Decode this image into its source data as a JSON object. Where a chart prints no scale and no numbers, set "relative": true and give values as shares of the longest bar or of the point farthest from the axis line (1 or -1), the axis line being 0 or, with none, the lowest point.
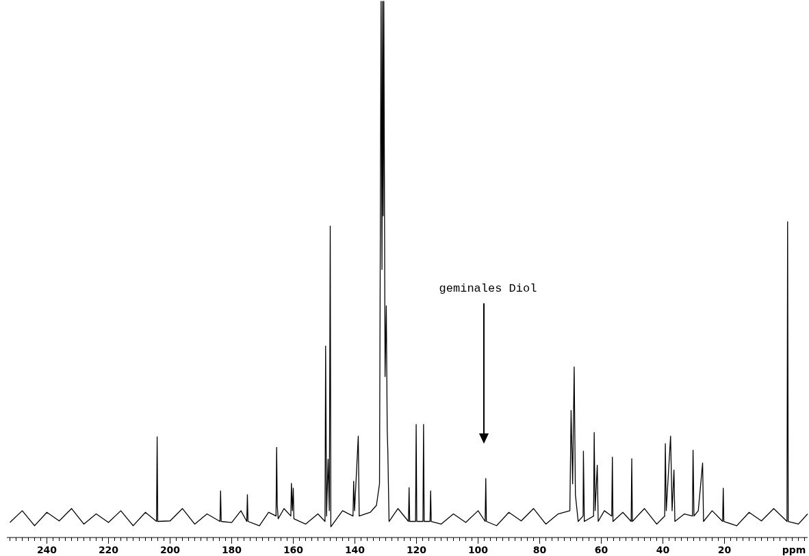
{
  "chart_data": {
    "type": "line",
    "relative": true,
    "xlabel": "ppm",
    "xlim": [
      253,
      -7
    ],
    "xticks": [
      240,
      220,
      200,
      180,
      160,
      140,
      120,
      100,
      80,
      60,
      40,
      20,
      {
        "value": 252,
        "label": null
      },
      {
        "value": 250,
        "label": null
      },
      {
        "value": 248,
        "label": null
      },
      {
        "value": 246,
        "label": null
      },
      {
        "value": 244,
        "label": null
      },
      {
        "value": 242,
        "label": null
      },
      {
        "value": 238,
        "label": null
      },
      {
        "value": 236,
        "label": null
      },
      {
        "value": 234,
        "label": null
      },
      {
        "value": 232,
        "label": null
      },
      {
        "value": 230,
        "label": null
      },
      {
        "value": 228,
        "label": null
      },
      {
        "value": 226,
        "label": null
      },
      {
        "value": 224,
        "label": null
      },
      {
        "value": 222,
        "label": null
      },
      {
        "value": 218,
        "label": null
      },
      {
        "value": 216,
        "label": null
      },
      {
        "value": 214,
        "label": null
      },
      {
        "value": 212,
        "label": null
      },
      {
        "value": 210,
        "label": null
      },
      {
        "value": 208,
        "label": null
      },
      {
        "value": 206,
        "label": null
      },
      {
        "value": 204,
        "label": null
      },
      {
        "value": 202,
        "label": null
      },
      {
        "value": 198,
        "label": null
      },
      {
        "value": 196,
        "label": null
      },
      {
        "value": 194,
        "label": null
      },
      {
        "value": 192,
        "label": null
      },
      {
        "value": 190,
        "label": null
      },
      {
        "value": 188,
        "label": null
      },
      {
        "value": 186,
        "label": null
      },
      {
        "value": 184,
        "label": null
      },
      {
        "value": 182,
        "label": null
      },
      {
        "value": 178,
        "label": null
      },
      {
        "value": 176,
        "label": null
      },
      {
        "value": 174,
        "label": null
      },
      {
        "value": 172,
        "label": null
      },
      {
        "value": 170,
        "label": null
      },
      {
        "value": 168,
        "label": null
      },
      {
        "value": 166,
        "label": null
      },
      {
        "value": 164,
        "label": null
      },
      {
        "value": 162,
        "label": null
      },
      {
        "value": 158,
        "label": null
      },
      {
        "value": 156,
        "label": null
      },
      {
        "value": 154,
        "label": null
      },
      {
        "value": 152,
        "label": null
      },
      {
        "value": 150,
        "label": null
      },
      {
        "value": 148,
        "label": null
      },
      {
        "value": 146,
        "label": null
      },
      {
        "value": 144,
        "label": null
      },
      {
        "value": 142,
        "label": null
      },
      {
        "value": 138,
        "label": null
      },
      {
        "value": 136,
        "label": null
      },
      {
        "value": 134,
        "label": null
      },
      {
        "value": 132,
        "label": null
      },
      {
        "value": 130,
        "label": null
      },
      {
        "value": 128,
        "label": null
      },
      {
        "value": 126,
        "label": null
      },
      {
        "value": 124,
        "label": null
      },
      {
        "value": 122,
        "label": null
      },
      {
        "value": 118,
        "label": null
      },
      {
        "value": 116,
        "label": null
      },
      {
        "value": 114,
        "label": null
      },
      {
        "value": 112,
        "label": null
      },
      {
        "value": 110,
        "label": null
      },
      {
        "value": 108,
        "label": null
      },
      {
        "value": 106,
        "label": null
      },
      {
        "value": 104,
        "label": null
      },
      {
        "value": 102,
        "label": null
      },
      {
        "value": 98,
        "label": null
      },
      {
        "value": 96,
        "label": null
      },
      {
        "value": 94,
        "label": null
      },
      {
        "value": 92,
        "label": null
      },
      {
        "value": 90,
        "label": null
      },
      {
        "value": 88,
        "label": null
      },
      {
        "value": 86,
        "label": null
      },
      {
        "value": 84,
        "label": null
      },
      {
        "value": 82,
        "label": null
      },
      {
        "value": 78,
        "label": null
      },
      {
        "value": 76,
        "label": null
      },
      {
        "value": 74,
        "label": null
      },
      {
        "value": 72,
        "label": null
      },
      {
        "value": 70,
        "label": null
      },
      {
        "value": 68,
        "label": null
      },
      {
        "value": 66,
        "label": null
      },
      {
        "value": 64,
        "label": null
      },
      {
        "value": 62,
        "label": null
      },
      {
        "value": 58,
        "label": null
      },
      {
        "value": 56,
        "label": null
      },
      {
        "value": 54,
        "label": null
      },
      {
        "value": 52,
        "label": null
      },
      {
        "value": 50,
        "label": null
      },
      {
        "value": 48,
        "label": null
      },
      {
        "value": 46,
        "label": null
      },
      {
        "value": 44,
        "label": null
      },
      {
        "value": 42,
        "label": null
      },
      {
        "value": 38,
        "label": null
      },
      {
        "value": 36,
        "label": null
      },
      {
        "value": 34,
        "label": null
      },
      {
        "value": 32,
        "label": null
      },
      {
        "value": 30,
        "label": null
      },
      {
        "value": 28,
        "label": null
      },
      {
        "value": 26,
        "label": null
      },
      {
        "value": 24,
        "label": null
      },
      {
        "value": 22,
        "label": null
      },
      {
        "value": 18,
        "label": null
      },
      {
        "value": 16,
        "label": null
      },
      {
        "value": 14,
        "label": null
      },
      {
        "value": 12,
        "label": null
      },
      {
        "value": 10,
        "label": null
      },
      {
        "value": 8,
        "label": null
      },
      {
        "value": 6,
        "label": null
      },
      {
        "value": 4,
        "label": null
      },
      {
        "value": 2,
        "label": null
      },
      {
        "value": 0,
        "label": null
      },
      {
        "value": -2,
        "label": null
      },
      {
        "value": -4,
        "label": null
      },
      {
        "value": -6,
        "label": null
      }
    ],
    "annotations": [
      "geminales Diol"
    ],
    "series": [
      {
        "color": "#000000",
        "x": [
          252,
          248,
          244,
          240,
          236,
          232,
          228,
          224,
          220,
          216,
          212,
          208,
          204.4,
          204.2,
          204.0,
          200,
          196,
          192,
          188,
          183.8,
          183.6,
          183.4,
          180,
          177,
          175.1,
          174.9,
          174.7,
          171,
          168,
          165.6,
          165.4,
          165.2,
          164.9,
          163,
          160.8,
          160.6,
          160.3,
          160.0,
          159.8,
          156,
          152,
          149.7,
          149.5,
          149.2,
          148.7,
          148.3,
          148.0,
          147.8,
          144,
          140.6,
          140.4,
          140.1,
          138.9,
          138.6,
          135,
          133,
          132.0,
          131.5,
          131.2,
          131.0,
          130.8,
          130.6,
          130.2,
          129.8,
          129.5,
          129.3,
          128.9,
          126,
          122.6,
          122.4,
          122.2,
          120.3,
          120.1,
          119.9,
          117.9,
          117.7,
          117.5,
          115.6,
          115.4,
          115.2,
          112,
          108,
          104,
          100,
          97.7,
          97.5,
          97.3,
          94,
          90,
          86,
          82,
          78,
          74,
          70.2,
          69.8,
          69.3,
          68.8,
          68.4,
          67.5,
          65.9,
          65.8,
          65.5,
          62.5,
          62.3,
          62.0,
          61.3,
          61.0,
          59,
          56.6,
          56.4,
          56.2,
          53,
          50.3,
          50.1,
          49.9,
          46,
          42,
          39.4,
          39.2,
          38.9,
          37.5,
          37.0,
          36.4,
          36.1,
          33,
          30.4,
          30.2,
          29.9,
          28.5,
          27.1,
          26.8,
          24,
          20.6,
          20.4,
          20.2,
          16,
          12,
          8,
          4,
          -0.3,
          -0.5,
          -0.7,
          -4,
          -7
        ],
        "values": [
          0.028,
          0.05,
          0.022,
          0.047,
          0.031,
          0.054,
          0.025,
          0.044,
          0.028,
          0.05,
          0.022,
          0.047,
          0.03,
          0.188,
          0.03,
          0.031,
          0.054,
          0.025,
          0.044,
          0.03,
          0.087,
          0.03,
          0.028,
          0.05,
          0.03,
          0.08,
          0.03,
          0.022,
          0.047,
          0.04,
          0.168,
          0.06,
          0.035,
          0.054,
          0.04,
          0.101,
          0.05,
          0.092,
          0.035,
          0.025,
          0.044,
          0.03,
          0.357,
          0.04,
          0.146,
          0.05,
          0.581,
          0.02,
          0.05,
          0.04,
          0.105,
          0.05,
          0.189,
          0.04,
          0.047,
          0.06,
          0.1,
          1,
          0.5,
          1,
          0.6,
          1,
          0.3,
          0.432,
          0.2,
          0.162,
          0.03,
          0.054,
          0.03,
          0.093,
          0.03,
          0.03,
          0.211,
          0.03,
          0.03,
          0.211,
          0.03,
          0.03,
          0.087,
          0.03,
          0.025,
          0.044,
          0.028,
          0.05,
          0.03,
          0.11,
          0.03,
          0.022,
          0.047,
          0.031,
          0.054,
          0.025,
          0.044,
          0.05,
          0.237,
          0.1,
          0.318,
          0.08,
          0.03,
          0.04,
          0.161,
          0.03,
          0.04,
          0.196,
          0.05,
          0.135,
          0.03,
          0.05,
          0.04,
          0.15,
          0.03,
          0.047,
          0.03,
          0.147,
          0.03,
          0.054,
          0.025,
          0.04,
          0.175,
          0.05,
          0.189,
          0.05,
          0.126,
          0.03,
          0.044,
          0.04,
          0.163,
          0.04,
          0.05,
          0.139,
          0.03,
          0.05,
          0.03,
          0.092,
          0.03,
          0.022,
          0.047,
          0.031,
          0.054,
          0.03,
          0.589,
          0.03,
          0.025,
          0.044
        ]
      }
    ]
  }
}
